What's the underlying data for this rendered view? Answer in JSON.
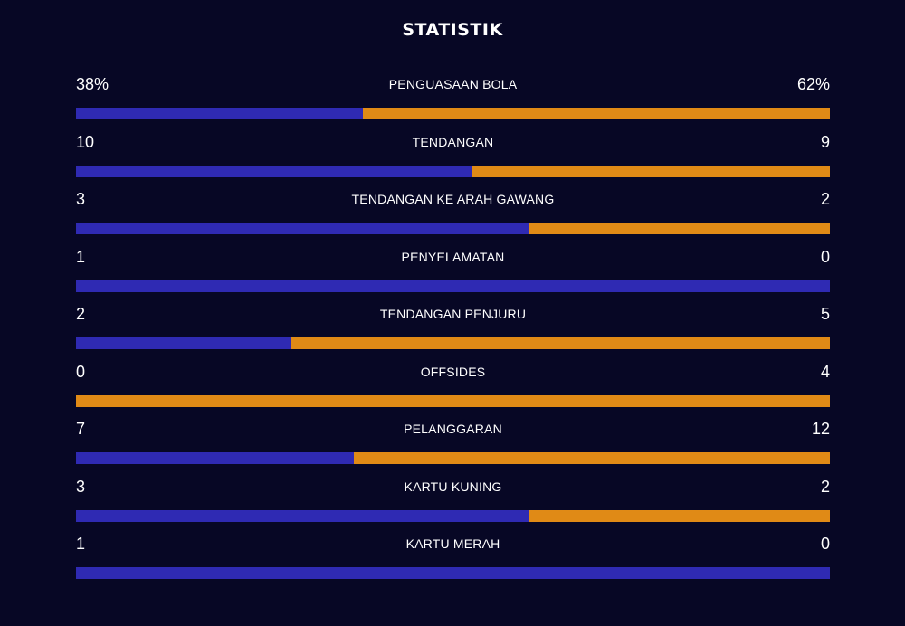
{
  "title": "STATISTIK",
  "colors": {
    "background": "#070725",
    "home": "#2f2ab3",
    "away": "#e08a16"
  },
  "stats": [
    {
      "label": "PENGUASAAN BOLA",
      "home": "38%",
      "away": "62%",
      "home_share": 0.38
    },
    {
      "label": "TENDANGAN",
      "home": "10",
      "away": "9",
      "home_share": 0.5263
    },
    {
      "label": "TENDANGAN KE ARAH GAWANG",
      "home": "3",
      "away": "2",
      "home_share": 0.6
    },
    {
      "label": "PENYELAMATAN",
      "home": "1",
      "away": "0",
      "home_share": 1.0
    },
    {
      "label": "TENDANGAN PENJURU",
      "home": "2",
      "away": "5",
      "home_share": 0.2857
    },
    {
      "label": "OFFSIDES",
      "home": "0",
      "away": "4",
      "home_share": 0.0
    },
    {
      "label": "PELANGGARAN",
      "home": "7",
      "away": "12",
      "home_share": 0.3684
    },
    {
      "label": "KARTU KUNING",
      "home": "3",
      "away": "2",
      "home_share": 0.6
    },
    {
      "label": "KARTU MERAH",
      "home": "1",
      "away": "0",
      "home_share": 1.0
    }
  ]
}
